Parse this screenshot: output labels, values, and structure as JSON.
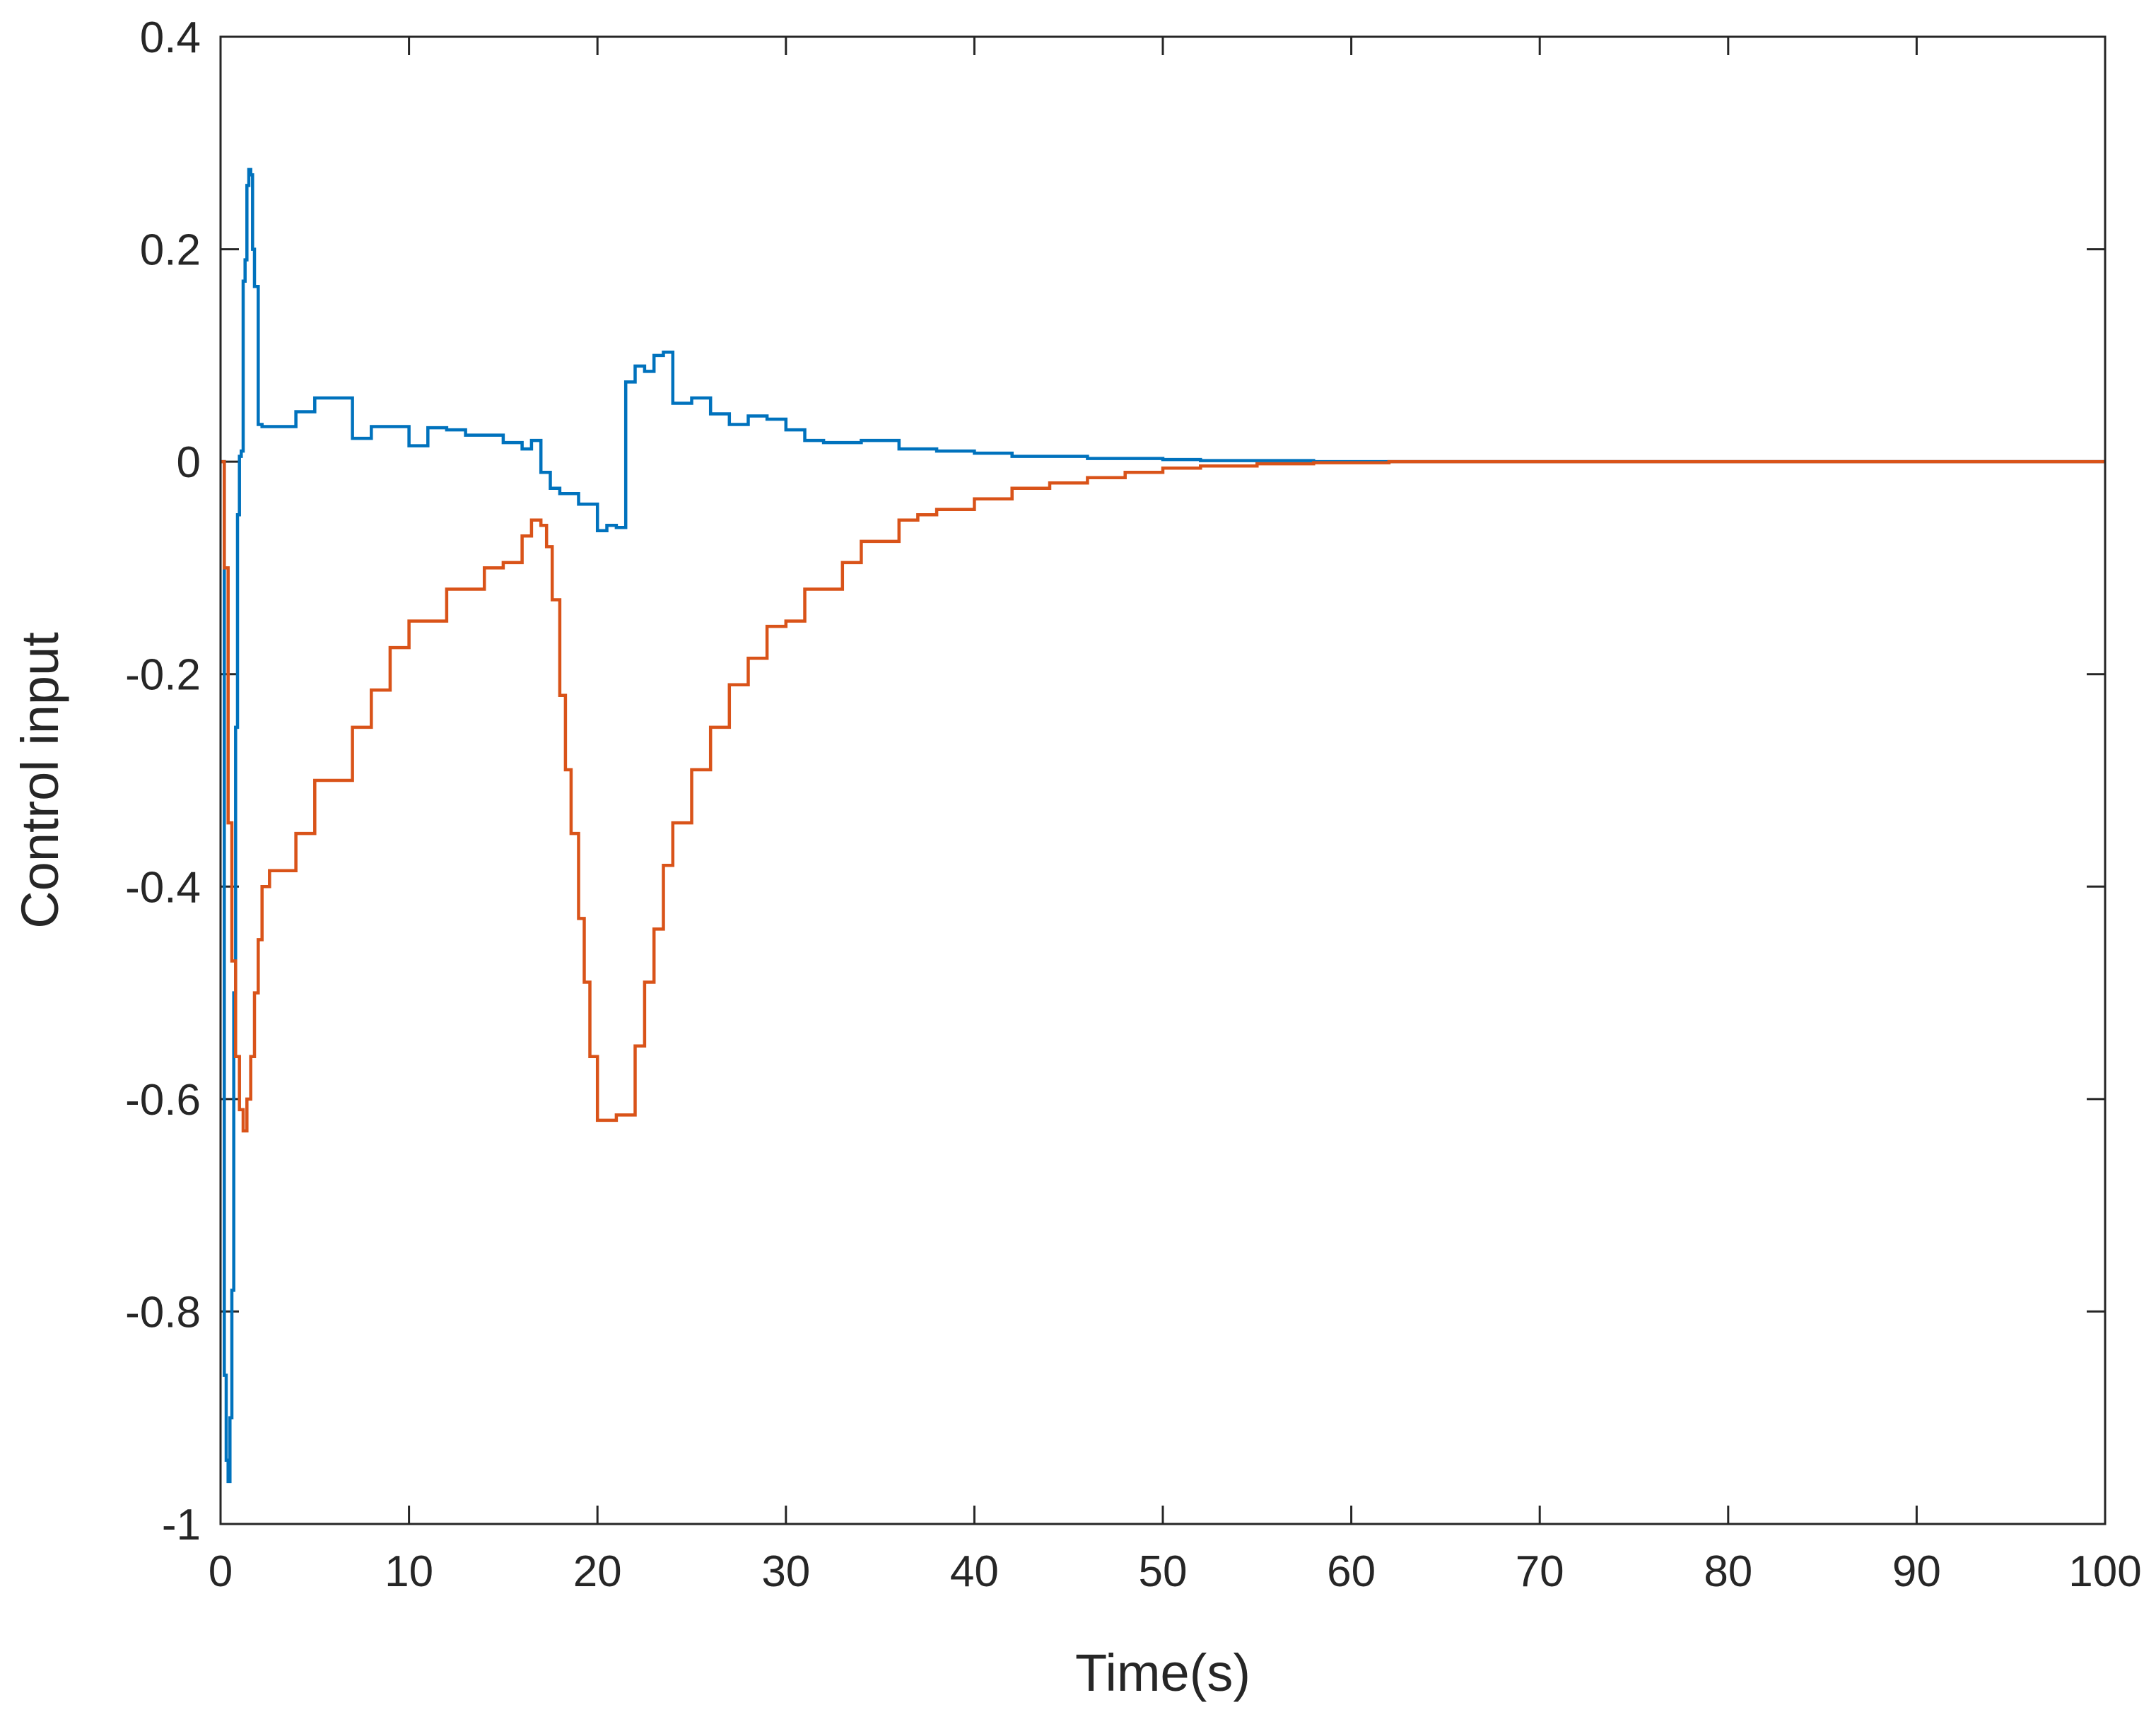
{
  "chart_data": {
    "type": "line",
    "title": "",
    "xlabel": "Time(s)",
    "ylabel": "Control input",
    "xlim": [
      0,
      100
    ],
    "ylim": [
      -1,
      0.4
    ],
    "xticks": [
      "0",
      "10",
      "20",
      "30",
      "40",
      "50",
      "60",
      "70",
      "80",
      "90",
      "100"
    ],
    "yticks": [
      "-1",
      "-0.8",
      "-0.6",
      "-0.4",
      "-0.2",
      "0",
      "0.2",
      "0.4"
    ],
    "grid": false,
    "legend": "none",
    "series": [
      {
        "color": "#0072BD",
        "x": [
          0,
          0.2,
          0.3,
          0.4,
          0.5,
          0.6,
          0.7,
          0.8,
          0.9,
          1.0,
          1.1,
          1.2,
          1.3,
          1.4,
          1.5,
          1.6,
          1.7,
          1.8,
          1.9,
          2.0,
          2.2,
          2.5,
          3,
          4,
          5,
          6,
          7,
          8,
          10,
          11,
          12,
          13,
          14,
          15,
          16,
          16.5,
          17,
          17.5,
          18,
          19,
          20,
          20.5,
          21,
          21.5,
          22,
          22.5,
          23,
          23.5,
          24,
          25,
          26,
          27,
          28,
          29,
          30,
          31,
          32,
          33,
          34,
          35,
          36,
          37,
          38,
          39,
          40,
          42,
          44,
          46,
          48,
          50,
          52,
          55,
          58,
          62,
          66,
          70,
          75,
          80,
          90,
          100
        ],
        "y": [
          0,
          -0.86,
          -0.94,
          -0.96,
          -0.9,
          -0.78,
          -0.5,
          -0.25,
          -0.05,
          0.005,
          0.01,
          0.17,
          0.19,
          0.26,
          0.275,
          0.27,
          0.2,
          0.165,
          0.165,
          0.035,
          0.033,
          0.033,
          0.033,
          0.047,
          0.06,
          0.06,
          0.022,
          0.033,
          0.015,
          0.032,
          0.03,
          0.025,
          0.025,
          0.018,
          0.012,
          0.02,
          -0.01,
          -0.025,
          -0.03,
          -0.04,
          -0.065,
          -0.06,
          -0.062,
          0.075,
          0.09,
          0.085,
          0.1,
          0.103,
          0.055,
          0.06,
          0.045,
          0.035,
          0.043,
          0.04,
          0.03,
          0.02,
          0.018,
          0.018,
          0.02,
          0.02,
          0.012,
          0.012,
          0.01,
          0.01,
          0.008,
          0.005,
          0.005,
          0.003,
          0.003,
          0.002,
          0.001,
          0.001,
          0.0,
          0.0,
          0.0,
          0.0,
          0.0,
          0.0,
          0.0,
          0.0
        ]
      },
      {
        "color": "#D95319",
        "x": [
          0,
          0.2,
          0.4,
          0.6,
          0.8,
          1.0,
          1.2,
          1.4,
          1.6,
          1.8,
          2.0,
          2.2,
          2.6,
          3,
          4,
          5,
          6,
          7,
          8,
          9,
          10,
          11,
          12,
          13,
          14,
          15,
          16,
          16.5,
          17,
          17.3,
          17.6,
          18,
          18.3,
          18.6,
          19,
          19.3,
          19.6,
          20,
          21,
          22,
          22.5,
          23,
          23.5,
          24,
          25,
          26,
          27,
          28,
          29,
          30,
          31,
          32,
          33,
          34,
          35,
          36,
          37,
          38,
          40,
          42,
          44,
          46,
          48,
          50,
          52,
          55,
          58,
          62,
          66,
          70,
          75,
          80,
          90,
          100
        ],
        "y": [
          0,
          -0.1,
          -0.34,
          -0.47,
          -0.56,
          -0.61,
          -0.63,
          -0.6,
          -0.56,
          -0.5,
          -0.45,
          -0.4,
          -0.385,
          -0.385,
          -0.35,
          -0.3,
          -0.3,
          -0.25,
          -0.215,
          -0.175,
          -0.15,
          -0.15,
          -0.12,
          -0.12,
          -0.1,
          -0.095,
          -0.07,
          -0.055,
          -0.06,
          -0.08,
          -0.13,
          -0.22,
          -0.29,
          -0.35,
          -0.43,
          -0.49,
          -0.56,
          -0.62,
          -0.615,
          -0.55,
          -0.49,
          -0.44,
          -0.38,
          -0.34,
          -0.29,
          -0.25,
          -0.21,
          -0.185,
          -0.155,
          -0.15,
          -0.12,
          -0.12,
          -0.095,
          -0.075,
          -0.075,
          -0.055,
          -0.05,
          -0.045,
          -0.035,
          -0.025,
          -0.02,
          -0.015,
          -0.01,
          -0.006,
          -0.004,
          -0.002,
          -0.001,
          0.0,
          0.0,
          0.0,
          0.0,
          0.0,
          0.0,
          0.0
        ]
      }
    ]
  }
}
